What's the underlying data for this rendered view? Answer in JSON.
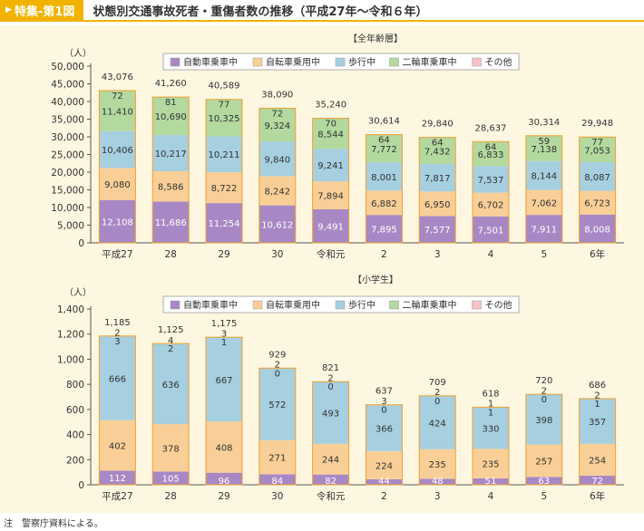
{
  "header": {
    "tag": "特集-第1図",
    "title": "状態別交通事故死者・重傷者数の推移（平成27年～令和６年）"
  },
  "note": "注　警察庁資料による。",
  "chart_data": [
    {
      "type": "stacked-bar",
      "title": "【全年齢層】",
      "ylabel": "（人）",
      "ylim": [
        0,
        50000
      ],
      "ytick_step": 5000,
      "categories": [
        "平成27",
        "28",
        "29",
        "30",
        "令和元",
        "2",
        "3",
        "4",
        "5",
        "6年"
      ],
      "totals": [
        "43,076",
        "41,260",
        "40,589",
        "38,090",
        "35,240",
        "30,614",
        "29,840",
        "28,637",
        "30,314",
        "29,948"
      ],
      "series": [
        {
          "name": "自動車乗車中",
          "color": "#a888c4",
          "values": [
            12108,
            11686,
            11254,
            10612,
            9491,
            7895,
            7577,
            7501,
            7911,
            8008
          ]
        },
        {
          "name": "自転車乗用中",
          "color": "#f9cf97",
          "values": [
            9080,
            8586,
            8722,
            8242,
            7894,
            6882,
            6950,
            6702,
            7062,
            6723
          ]
        },
        {
          "name": "歩行中",
          "color": "#a6cfe0",
          "values": [
            10406,
            10217,
            10211,
            9840,
            9241,
            8001,
            7817,
            7537,
            8144,
            8087
          ]
        },
        {
          "name": "二輪車乗車中",
          "color": "#b3d99f",
          "values": [
            11410,
            10690,
            10325,
            9324,
            8544,
            7772,
            7432,
            6833,
            7138,
            7053
          ]
        },
        {
          "name": "その他",
          "color": "#f7c3c9",
          "values": [
            72,
            81,
            77,
            72,
            70,
            64,
            64,
            64,
            59,
            77
          ]
        }
      ]
    },
    {
      "type": "stacked-bar",
      "title": "【小学生】",
      "ylabel": "（人）",
      "ylim": [
        0,
        1400
      ],
      "ytick_step": 200,
      "categories": [
        "平成27",
        "28",
        "29",
        "30",
        "令和元",
        "2",
        "3",
        "4",
        "5",
        "6年"
      ],
      "totals": [
        "1,185",
        "1,125",
        "1,175",
        "929",
        "821",
        "637",
        "709",
        "618",
        "720",
        "686"
      ],
      "series": [
        {
          "name": "自動車乗車中",
          "color": "#a888c4",
          "values": [
            112,
            105,
            96,
            84,
            82,
            44,
            48,
            51,
            63,
            72
          ]
        },
        {
          "name": "自転車乗用中",
          "color": "#f9cf97",
          "values": [
            402,
            378,
            408,
            271,
            244,
            224,
            235,
            235,
            257,
            254
          ]
        },
        {
          "name": "歩行中",
          "color": "#a6cfe0",
          "values": [
            666,
            636,
            667,
            572,
            493,
            366,
            424,
            330,
            398,
            357
          ]
        },
        {
          "name": "二輪車乗車中",
          "color": "#b3d99f",
          "values": [
            2,
            4,
            3,
            2,
            2,
            3,
            2,
            1,
            2,
            2
          ]
        },
        {
          "name": "その他",
          "color": "#f7c3c9",
          "values": [
            3,
            2,
            1,
            0,
            0,
            0,
            0,
            1,
            0,
            1
          ]
        }
      ]
    }
  ]
}
